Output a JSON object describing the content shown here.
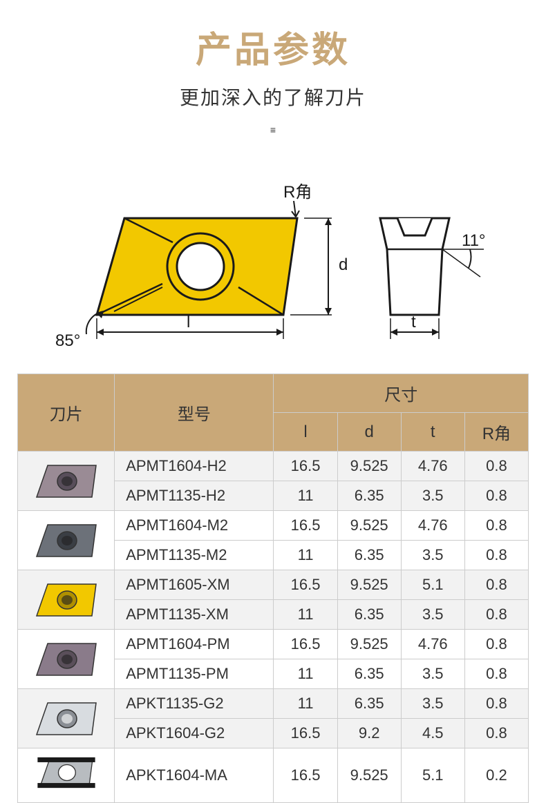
{
  "header": {
    "title": "产品参数",
    "title_color": "#c9a878",
    "subtitle": "更加深入的了解刀片",
    "divider": "≡"
  },
  "diagram": {
    "labels": {
      "r_corner": "R角",
      "d": "d",
      "l": "l",
      "t": "t",
      "angle_left": "85°",
      "angle_right": "11°"
    },
    "insert_fill": "#f2c800",
    "stroke": "#1a1a1a"
  },
  "table": {
    "header_bg": "#c9a878",
    "row_even_bg": "#f2f2f2",
    "row_odd_bg": "#ffffff",
    "columns": {
      "blade": "刀片",
      "model": "型号",
      "size": "尺寸",
      "l": "l",
      "d": "d",
      "t": "t",
      "r_corner": "R角"
    },
    "groups": [
      {
        "insert_colors": {
          "body": "#9a8b95",
          "hole": "#584e5a"
        },
        "rows": [
          {
            "model": "APMT1604-H2",
            "l": "16.5",
            "d": "9.525",
            "t": "4.76",
            "r": "0.8"
          },
          {
            "model": "APMT1135-H2",
            "l": "11",
            "d": "6.35",
            "t": "3.5",
            "r": "0.8"
          }
        ]
      },
      {
        "insert_colors": {
          "body": "#6c7179",
          "hole": "#3a3e44"
        },
        "rows": [
          {
            "model": "APMT1604-M2",
            "l": "16.5",
            "d": "9.525",
            "t": "4.76",
            "r": "0.8"
          },
          {
            "model": "APMT1135-M2",
            "l": "11",
            "d": "6.35",
            "t": "3.5",
            "r": "0.8"
          }
        ]
      },
      {
        "insert_colors": {
          "body": "#f2c800",
          "hole": "#b09000"
        },
        "rows": [
          {
            "model": "APMT1605-XM",
            "l": "16.5",
            "d": "9.525",
            "t": "5.1",
            "r": "0.8"
          },
          {
            "model": "APMT1135-XM",
            "l": "11",
            "d": "6.35",
            "t": "3.5",
            "r": "0.8"
          }
        ]
      },
      {
        "insert_colors": {
          "body": "#8a7b8a",
          "hole": "#5a4f5a"
        },
        "rows": [
          {
            "model": "APMT1604-PM",
            "l": "16.5",
            "d": "9.525",
            "t": "4.76",
            "r": "0.8"
          },
          {
            "model": "APMT1135-PM",
            "l": "11",
            "d": "6.35",
            "t": "3.5",
            "r": "0.8"
          }
        ]
      },
      {
        "insert_colors": {
          "body": "#d8dce0",
          "hole": "#8a8e94"
        },
        "rows": [
          {
            "model": "APKT1135-G2",
            "l": "11",
            "d": "6.35",
            "t": "3.5",
            "r": "0.8"
          },
          {
            "model": "APKT1604-G2",
            "l": "16.5",
            "d": "9.2",
            "t": "4.5",
            "r": "0.8"
          }
        ]
      },
      {
        "insert_colors": {
          "body": "#b8bcc0",
          "hole": "#ffffff",
          "bars": "#1a1a1a"
        },
        "rows": [
          {
            "model": "APKT1604-MA",
            "l": "16.5",
            "d": "9.525",
            "t": "5.1",
            "r": "0.2"
          }
        ]
      }
    ]
  }
}
